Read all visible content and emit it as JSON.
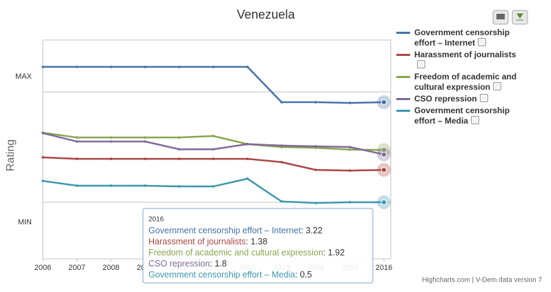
{
  "chart_data": {
    "type": "line",
    "title": "Venezuela",
    "y_label": "Rating",
    "credits": "Highcharts.com | V-Dem data version 7",
    "x": [
      2006,
      2007,
      2008,
      2009,
      2010,
      2011,
      2012,
      2013,
      2014,
      2015,
      2016
    ],
    "xlim": [
      2006,
      2016
    ],
    "xticks": [
      2006,
      2007,
      2008,
      2009,
      2010,
      2011,
      2012,
      2013,
      2014,
      2015,
      2016
    ],
    "ylim": [
      -1.04,
      4.91
    ],
    "yticks": [
      {
        "value": 0.5,
        "label": "MIN"
      },
      {
        "value": 3.5,
        "label": "MAX"
      }
    ],
    "grid": true,
    "legend": "right",
    "tooltip_index": 10,
    "series": [
      {
        "name": "Government censorship effort – Internet",
        "color": "#4572a7",
        "values": [
          4.18,
          4.18,
          4.18,
          4.18,
          4.18,
          4.18,
          4.18,
          3.22,
          3.22,
          3.2,
          3.22
        ]
      },
      {
        "name": "Harassment of journalists",
        "color": "#aa4643",
        "values": [
          1.72,
          1.68,
          1.68,
          1.68,
          1.68,
          1.68,
          1.68,
          1.59,
          1.38,
          1.36,
          1.38
        ]
      },
      {
        "name": "Freedom of academic and cultural expression",
        "color": "#89a54e",
        "values": [
          2.39,
          2.26,
          2.26,
          2.26,
          2.26,
          2.3,
          2.08,
          2.0,
          1.98,
          1.93,
          1.92
        ]
      },
      {
        "name": "CSO repression",
        "color": "#80699b",
        "values": [
          2.38,
          2.15,
          2.15,
          2.15,
          1.94,
          1.94,
          2.08,
          2.04,
          2.02,
          2.0,
          1.8
        ]
      },
      {
        "name": "Government censorship effort – Media",
        "color": "#3d96ae",
        "values": [
          1.08,
          0.95,
          0.95,
          0.95,
          0.93,
          0.93,
          1.14,
          0.52,
          0.48,
          0.5,
          0.5
        ]
      }
    ]
  }
}
